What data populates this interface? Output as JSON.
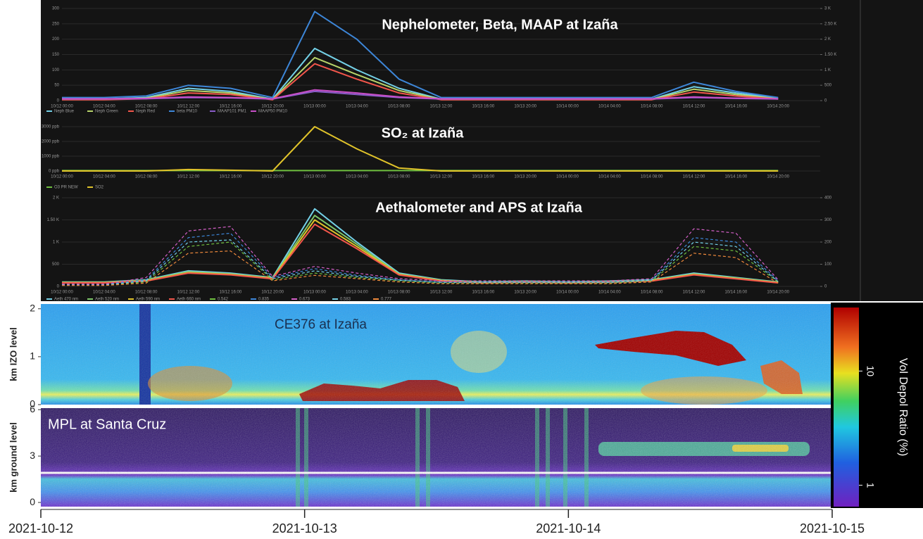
{
  "chart_data": [
    {
      "type": "line",
      "title": "Nephelometer, Beta, MAAP at Izaña",
      "categories": [
        "10/12 00:00",
        "10/12 04:00",
        "10/12 08:00",
        "10/12 12:00",
        "10/12 16:00",
        "10/12 20:00",
        "10/13 00:00",
        "10/13 04:00",
        "10/13 08:00",
        "10/13 12:00",
        "10/13 16:00",
        "10/13 20:00",
        "10/14 00:00",
        "10/14 04:00",
        "10/14 08:00",
        "10/14 12:00",
        "10/14 16:00",
        "10/14 20:00"
      ],
      "ylim": [
        0,
        300
      ],
      "yticks": [
        0,
        50,
        100,
        150,
        200,
        250,
        300
      ],
      "y2lim": [
        0,
        3000
      ],
      "y2ticks": [
        0,
        500,
        {
          "value": 1000,
          "label": "1 K"
        },
        {
          "value": 1500,
          "label": "1.50 K"
        },
        {
          "value": 2000,
          "label": "2 K"
        },
        {
          "value": 2500,
          "label": "2.50 K"
        },
        {
          "value": 3000,
          "label": "3 K"
        }
      ],
      "series": [
        {
          "name": "Neph Blue",
          "color": "#73d0e6",
          "values": [
            5,
            5,
            10,
            40,
            30,
            5,
            170,
            100,
            40,
            5,
            5,
            5,
            5,
            5,
            5,
            45,
            25,
            8
          ]
        },
        {
          "name": "Neph Green",
          "color": "#b8d46a",
          "values": [
            4,
            4,
            8,
            33,
            25,
            4,
            140,
            85,
            33,
            4,
            4,
            4,
            4,
            4,
            4,
            37,
            20,
            6
          ]
        },
        {
          "name": "Neph Red",
          "color": "#f2564b",
          "values": [
            3,
            3,
            6,
            25,
            20,
            3,
            120,
            70,
            25,
            3,
            3,
            3,
            3,
            3,
            3,
            28,
            15,
            5
          ]
        },
        {
          "name": "beta PM10",
          "color": "#3d86d8",
          "axis": "y2",
          "values": [
            100,
            100,
            150,
            500,
            400,
            100,
            2900,
            2000,
            700,
            100,
            100,
            100,
            100,
            100,
            100,
            600,
            300,
            100
          ]
        },
        {
          "name": "MAAP101 PM1",
          "color": "#8a5cc8",
          "axis": "y2",
          "values": [
            50,
            50,
            60,
            100,
            90,
            50,
            300,
            200,
            100,
            50,
            50,
            50,
            50,
            50,
            50,
            100,
            70,
            50
          ]
        },
        {
          "name": "MAAP50 PM10",
          "color": "#c84fc8",
          "axis": "y2",
          "values": [
            60,
            60,
            70,
            120,
            100,
            60,
            350,
            250,
            120,
            60,
            60,
            60,
            60,
            60,
            60,
            120,
            80,
            60
          ]
        }
      ]
    },
    {
      "type": "line",
      "title": "SO₂ at Izaña",
      "categories": [
        "10/12 00:00",
        "10/12 04:00",
        "10/12 08:00",
        "10/12 12:00",
        "10/12 16:00",
        "10/12 20:00",
        "10/13 00:00",
        "10/13 04:00",
        "10/13 08:00",
        "10/13 12:00",
        "10/13 16:00",
        "10/13 20:00",
        "10/14 00:00",
        "10/14 04:00",
        "10/14 08:00",
        "10/14 12:00",
        "10/14 16:00",
        "10/14 20:00"
      ],
      "ylim": [
        0,
        3000
      ],
      "yticks": [
        {
          "value": 0,
          "label": "0 ppb"
        },
        {
          "value": 1000,
          "label": "1000 ppb"
        },
        {
          "value": 2000,
          "label": "2000 ppb"
        },
        {
          "value": 3000,
          "label": "3000 ppb"
        }
      ],
      "series": [
        {
          "name": "O3 PR NEW",
          "color": "#6fbf3f",
          "values": [
            30,
            30,
            30,
            30,
            30,
            30,
            30,
            30,
            30,
            30,
            30,
            30,
            30,
            30,
            30,
            30,
            30,
            30
          ]
        },
        {
          "name": "SO2",
          "color": "#e0c32a",
          "values": [
            0,
            0,
            0,
            100,
            50,
            0,
            3000,
            1500,
            200,
            0,
            0,
            0,
            0,
            0,
            0,
            0,
            0,
            0
          ]
        }
      ]
    },
    {
      "type": "line",
      "title": "Aethalometer and APS at Izaña",
      "categories": [
        "10/12 00:00",
        "10/12 04:00",
        "10/12 08:00",
        "10/12 12:00",
        "10/12 16:00",
        "10/12 20:00",
        "10/13 00:00",
        "10/13 04:00",
        "10/13 08:00",
        "10/13 12:00",
        "10/13 16:00",
        "10/13 20:00",
        "10/14 00:00",
        "10/14 04:00",
        "10/14 08:00",
        "10/14 12:00",
        "10/14 16:00",
        "10/14 20:00"
      ],
      "ylim": [
        0,
        2000
      ],
      "yticks": [
        0,
        500,
        {
          "value": 1000,
          "label": "1 K"
        },
        {
          "value": 1500,
          "label": "1.50 K"
        },
        {
          "value": 2000,
          "label": "2 K"
        }
      ],
      "y2lim": [
        0,
        400
      ],
      "y2ticks": [
        0,
        100,
        200,
        300,
        400
      ],
      "series": [
        {
          "name": "Aeth 470 nm",
          "color": "#73d0e6",
          "values": [
            100,
            100,
            150,
            350,
            300,
            200,
            1750,
            1000,
            300,
            150,
            100,
            120,
            100,
            120,
            150,
            300,
            200,
            100
          ]
        },
        {
          "name": "Aeth 520 nm",
          "color": "#7ec86a",
          "values": [
            90,
            90,
            140,
            330,
            280,
            190,
            1600,
            950,
            280,
            140,
            90,
            110,
            90,
            110,
            140,
            280,
            190,
            90
          ]
        },
        {
          "name": "Aeth 590 nm",
          "color": "#e0c32a",
          "values": [
            85,
            85,
            130,
            310,
            270,
            180,
            1500,
            900,
            270,
            130,
            85,
            100,
            85,
            100,
            130,
            270,
            180,
            85
          ]
        },
        {
          "name": "Aeth 660 nm",
          "color": "#f2564b",
          "values": [
            80,
            80,
            120,
            300,
            260,
            170,
            1400,
            850,
            260,
            120,
            80,
            95,
            80,
            95,
            120,
            260,
            170,
            80
          ]
        },
        {
          "name": "0.542",
          "color": "#6fbf3f",
          "axis": "y2",
          "dash": true,
          "values": [
            5,
            5,
            20,
            180,
            200,
            30,
            60,
            40,
            25,
            15,
            15,
            15,
            15,
            15,
            25,
            180,
            160,
            20
          ]
        },
        {
          "name": "0.835",
          "color": "#3d86d8",
          "axis": "y2",
          "dash": true,
          "values": [
            8,
            8,
            30,
            220,
            240,
            40,
            80,
            50,
            30,
            20,
            20,
            20,
            20,
            20,
            30,
            220,
            200,
            25
          ]
        },
        {
          "name": "0.673",
          "color": "#d460c8",
          "axis": "y2",
          "dash": true,
          "values": [
            10,
            10,
            40,
            250,
            270,
            45,
            90,
            60,
            35,
            25,
            25,
            25,
            25,
            25,
            35,
            260,
            240,
            30
          ]
        },
        {
          "name": "0.583",
          "color": "#73d0e6",
          "axis": "y2",
          "dash": true,
          "values": [
            6,
            6,
            25,
            200,
            210,
            35,
            70,
            45,
            28,
            18,
            18,
            18,
            18,
            18,
            28,
            200,
            180,
            22
          ]
        },
        {
          "name": "0.777",
          "color": "#f08a3c",
          "axis": "y2",
          "dash": true,
          "values": [
            4,
            4,
            15,
            150,
            160,
            25,
            50,
            35,
            20,
            12,
            12,
            12,
            12,
            12,
            20,
            150,
            130,
            15
          ]
        }
      ]
    },
    {
      "type": "lidar",
      "title": "CE376 at Izaña",
      "ylabel": "km IZO level",
      "ylim": [
        0,
        2.1
      ],
      "yticks": [
        0,
        1,
        2
      ]
    },
    {
      "type": "lidar",
      "title": "MPL at Santa Cruz",
      "ylabel": "km ground level",
      "ylim": [
        -0.27,
        6.1
      ],
      "yticks": [
        0,
        3,
        6
      ]
    },
    {
      "type": "colorbar",
      "label": "Vol Depol Ratio (%)",
      "log": true,
      "ylim": [
        0.65,
        36
      ],
      "yticks": [
        1,
        10
      ]
    },
    {
      "type": "time_axis",
      "categories": [
        "2021-10-12",
        "2021-10-13",
        "2021-10-14",
        "2021-10-15"
      ]
    }
  ]
}
